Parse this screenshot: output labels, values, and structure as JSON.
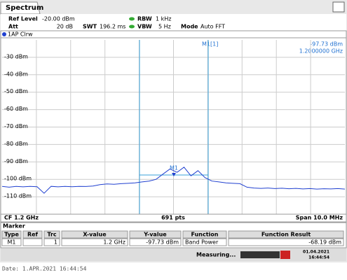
{
  "tab": "Spectrum",
  "header": {
    "ref_level_label": "Ref Level",
    "ref_level": "-20.00 dBm",
    "att_label": "Att",
    "att": "20 dB",
    "swt_label": "SWT",
    "swt": "196.2 ms",
    "rbw_label": "RBW",
    "rbw": "1 kHz",
    "vbw_label": "VBW",
    "vbw": "5 Hz",
    "mode_label": "Mode",
    "mode": "Auto FFT"
  },
  "trace_label": "1AP Clrw",
  "marker_readout": {
    "name": "M1[1]",
    "level": "-97.73 dBm",
    "freq": "1.2000000 GHz"
  },
  "marker_tag": "M1",
  "chart_data": {
    "type": "line",
    "color": "#2040d0",
    "ylim": [
      -120,
      -20
    ],
    "yticks": [
      {
        "value": -30,
        "label": "-30 dBm"
      },
      {
        "value": -40,
        "label": "-40 dBm"
      },
      {
        "value": -50,
        "label": "-50 dBm"
      },
      {
        "value": -60,
        "label": "-60 dBm"
      },
      {
        "value": -70,
        "label": "-70 dBm"
      },
      {
        "value": -80,
        "label": "-80 dBm"
      },
      {
        "value": -90,
        "label": "-90 dBm"
      },
      {
        "value": -100,
        "label": "-100 dBm"
      },
      {
        "value": -110,
        "label": "-110 dBm"
      }
    ],
    "values": [
      -104,
      -104.5,
      -104,
      -104.3,
      -104,
      -104.2,
      -108,
      -104,
      -104.3,
      -104,
      -104.2,
      -104,
      -104.1,
      -103.8,
      -103,
      -102.6,
      -102.8,
      -102.5,
      -102.3,
      -102,
      -101.5,
      -101,
      -100,
      -97,
      -94,
      -96,
      -93,
      -98,
      -95,
      -99,
      -101,
      -101.5,
      -102,
      -102.3,
      -102.5,
      -104.5,
      -105,
      -105.2,
      -105,
      -105.3,
      -105.1,
      -105.4,
      -105.2,
      -105.5,
      -105.3,
      -105.6,
      -105.4,
      -105.5,
      -105.3,
      -105.6
    ]
  },
  "footer": {
    "cf": "CF 1.2 GHz",
    "pts": "691 pts",
    "span": "Span 10.0 MHz"
  },
  "marker_table": {
    "title": "Marker",
    "headers": [
      "Type",
      "Ref",
      "Trc",
      "X-value",
      "Y-value",
      "Function",
      "Function Result"
    ],
    "rows": [
      [
        "M1",
        "",
        "1",
        "1.2 GHz",
        "-97.73 dBm",
        "Band Power",
        "-68.19 dBm"
      ]
    ]
  },
  "status": {
    "text": "Measuring...",
    "date": "01.04.2021",
    "time": "16:44:54"
  },
  "date_line": "Date: 1.APR.2021  16:44:54"
}
